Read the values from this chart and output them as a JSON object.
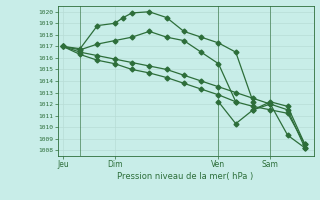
{
  "background_color": "#c8ede8",
  "grid_color": "#b8dcd6",
  "line_color": "#2d6e3a",
  "title": "Pression niveau de la mer( hPa )",
  "ylim": [
    1007.5,
    1020.5
  ],
  "yticks": [
    1008,
    1009,
    1010,
    1011,
    1012,
    1013,
    1014,
    1015,
    1016,
    1017,
    1018,
    1019,
    1020
  ],
  "xtick_labels": [
    "Jeu",
    "Dim",
    "Ven",
    "Sam"
  ],
  "xtick_positions": [
    0,
    3,
    9,
    12
  ],
  "xlim": [
    -0.3,
    14.5
  ],
  "series": [
    {
      "x": [
        0,
        1,
        2,
        3,
        3.5,
        4,
        5,
        6,
        7,
        8,
        9,
        10,
        11
      ],
      "y": [
        1017.0,
        1016.8,
        1018.8,
        1019.0,
        1019.5,
        1019.9,
        1020.0,
        1019.5,
        1018.3,
        1017.8,
        1017.3,
        1016.5,
        1012.2
      ]
    },
    {
      "x": [
        0,
        1,
        2,
        3,
        4,
        5,
        6,
        7,
        8,
        9,
        10
      ],
      "y": [
        1017.0,
        1016.7,
        1017.2,
        1017.5,
        1017.8,
        1018.3,
        1017.8,
        1017.5,
        1016.5,
        1015.5,
        1012.2
      ]
    },
    {
      "x": [
        0,
        1,
        2,
        3,
        4,
        5,
        6,
        7,
        8,
        9,
        10,
        11,
        12,
        13,
        14
      ],
      "y": [
        1017.0,
        1016.5,
        1016.2,
        1015.9,
        1015.6,
        1015.3,
        1015.0,
        1014.5,
        1014.0,
        1013.5,
        1013.0,
        1012.5,
        1012.0,
        1011.5,
        1008.2
      ]
    },
    {
      "x": [
        0,
        1,
        2,
        3,
        4,
        5,
        6,
        7,
        8,
        9,
        10,
        11,
        12,
        13,
        14
      ],
      "y": [
        1017.0,
        1016.3,
        1015.8,
        1015.5,
        1015.0,
        1014.7,
        1014.3,
        1013.8,
        1013.3,
        1012.8,
        1012.2,
        1011.8,
        1011.5,
        1011.2,
        1008.5
      ]
    }
  ],
  "extra_segments": [
    {
      "x": [
        9,
        10,
        11,
        12,
        13,
        14
      ],
      "y": [
        1012.2,
        1010.3,
        1011.5,
        1012.2,
        1011.8,
        1008.5
      ]
    },
    {
      "x": [
        11,
        12,
        13,
        14
      ],
      "y": [
        1011.5,
        1012.0,
        1009.3,
        1008.2
      ]
    }
  ],
  "vlines": [
    1,
    9,
    12
  ],
  "figsize": [
    3.2,
    2.0
  ],
  "dpi": 100
}
